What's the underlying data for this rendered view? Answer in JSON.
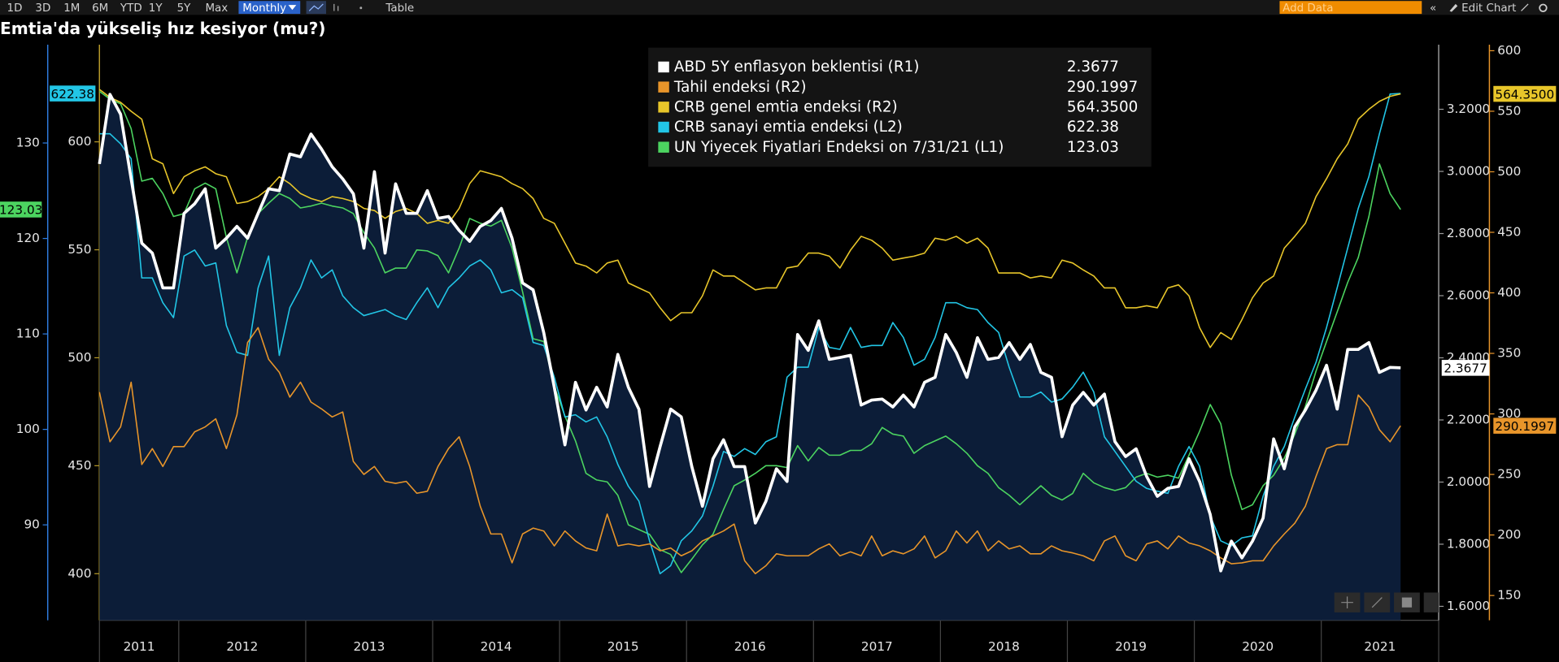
{
  "toolbar": {
    "ranges": [
      "1D",
      "3D",
      "1M",
      "6M",
      "YTD",
      "1Y",
      "5Y",
      "Max"
    ],
    "frequency": "Monthly",
    "table": "Table",
    "add_data": "Add Data",
    "edit_chart": "Edit Chart"
  },
  "chart_data": {
    "type": "line",
    "title": "Emtia'da yükseliş hız kesiyor (mu?)",
    "categories": [
      null,
      "2011",
      null,
      null,
      null,
      null,
      null,
      null,
      null,
      null,
      null,
      null,
      null,
      null,
      "2012",
      null,
      null,
      null,
      null,
      null,
      null,
      null,
      null,
      null,
      null,
      null,
      "2013",
      null,
      null,
      null,
      null,
      null,
      null,
      null,
      null,
      null,
      null,
      null,
      "2014",
      null,
      null,
      null,
      null,
      null,
      null,
      null,
      null,
      null,
      null,
      null,
      "2015",
      null,
      null,
      null,
      null,
      null,
      null,
      null,
      null,
      null,
      null,
      null,
      "2016",
      null,
      null,
      null,
      null,
      null,
      null,
      null,
      null,
      null,
      null,
      null,
      "2017",
      null,
      null,
      null,
      null,
      null,
      null,
      null,
      null,
      null,
      null,
      null,
      "2018",
      null,
      null,
      null,
      null,
      null,
      null,
      null,
      null,
      null,
      null,
      null,
      "2019",
      null,
      null,
      null,
      null,
      null,
      null,
      null,
      null,
      null,
      null,
      null,
      "2020",
      null,
      null,
      null,
      null,
      null,
      null,
      null,
      null,
      null,
      null,
      null,
      "2021",
      null
    ],
    "axes": {
      "L1": {
        "lim": [
          80,
          140.3
        ],
        "ticks": [
          90,
          100,
          110,
          120,
          130
        ],
        "color": "#2f7de1"
      },
      "L2": {
        "lim": [
          378.4,
          645
        ],
        "ticks": [
          400,
          450,
          500,
          550,
          600
        ],
        "color": "#b89b2a"
      },
      "R1": {
        "lim": [
          1.555,
          3.408
        ],
        "ticks": [
          {
            "value": 1.6,
            "label": "1.6000"
          },
          {
            "value": 1.8,
            "label": "1.8000"
          },
          {
            "value": 2.0,
            "label": "2.0000"
          },
          {
            "value": 2.2,
            "label": "2.2000"
          },
          {
            "value": 2.4,
            "label": "2.4000"
          },
          {
            "value": 2.6,
            "label": "2.6000"
          },
          {
            "value": 2.8,
            "label": "2.8000"
          },
          {
            "value": 3.0,
            "label": "3.0000"
          },
          {
            "value": 3.2,
            "label": "3.2000"
          }
        ],
        "color": "#9a9a9a"
      },
      "R2": {
        "lim": [
          129.5,
          605
        ],
        "ticks": [
          150,
          200,
          250,
          300,
          350,
          400,
          450,
          500,
          550,
          600
        ],
        "color": "#e8952a"
      }
    },
    "series": [
      {
        "name": "ABD 5Y enflasyon beklentisi (R1)",
        "color": "#ffffff",
        "fill": "#0c1d38",
        "axis": "R1",
        "last_label": "2.3677",
        "values": [
          3.024,
          3.248,
          3.184,
          2.976,
          2.769,
          2.737,
          2.625,
          2.625,
          2.865,
          2.896,
          2.944,
          2.753,
          2.785,
          2.823,
          2.785,
          2.865,
          2.944,
          2.938,
          3.056,
          3.047,
          3.12,
          3.072,
          3.015,
          2.976,
          2.928,
          2.753,
          2.999,
          2.737,
          2.96,
          2.865,
          2.865,
          2.938,
          2.849,
          2.855,
          2.81,
          2.775,
          2.823,
          2.842,
          2.881,
          2.785,
          2.641,
          2.619,
          2.481,
          2.305,
          2.12,
          2.321,
          2.232,
          2.305,
          2.242,
          2.411,
          2.305,
          2.235,
          1.986,
          2.114,
          2.235,
          2.21,
          2.05,
          1.922,
          2.075,
          2.136,
          2.05,
          2.05,
          1.868,
          1.938,
          2.043,
          2.002,
          2.475,
          2.424,
          2.519,
          2.395,
          2.401,
          2.408,
          2.248,
          2.264,
          2.267,
          2.242,
          2.28,
          2.242,
          2.321,
          2.337,
          2.475,
          2.417,
          2.337,
          2.465,
          2.395,
          2.401,
          2.449,
          2.395,
          2.443,
          2.353,
          2.337,
          2.146,
          2.248,
          2.289,
          2.248,
          2.283,
          2.13,
          2.082,
          2.107,
          2.018,
          1.954,
          1.98,
          1.986,
          2.075,
          2.002,
          1.896,
          1.714,
          1.81,
          1.756,
          1.81,
          1.884,
          2.139,
          2.043,
          2.178,
          2.232,
          2.296,
          2.376,
          2.235,
          2.427,
          2.427,
          2.449,
          2.353,
          2.369,
          2.3677
        ]
      },
      {
        "name": "Tahil endeksi (R2)",
        "color": "#e8952a",
        "axis": "R2",
        "last_label": "290.1997",
        "values": [
          318.0,
          277.0,
          289.3,
          326.2,
          258.2,
          271.3,
          256.6,
          273.0,
          273.0,
          285.2,
          289.3,
          295.9,
          271.3,
          299.2,
          359.0,
          371.3,
          345.1,
          334.4,
          313.9,
          326.2,
          309.8,
          304.1,
          297.5,
          301.6,
          260.7,
          250.0,
          256.6,
          244.3,
          242.6,
          244.3,
          234.4,
          236.1,
          256.6,
          271.3,
          281.1,
          256.6,
          223.8,
          200.8,
          200.8,
          177.0,
          200.8,
          205.7,
          203.3,
          191.0,
          203.3,
          195.1,
          189.3,
          186.9,
          217.2,
          191.0,
          192.6,
          191.0,
          192.6,
          186.9,
          189.3,
          182.8,
          186.9,
          195.1,
          199.2,
          203.3,
          209.0,
          178.7,
          168.0,
          174.6,
          184.4,
          182.8,
          182.8,
          182.8,
          188.5,
          192.6,
          182.8,
          186.1,
          182.8,
          199.2,
          182.8,
          186.9,
          184.4,
          188.5,
          199.2,
          181.1,
          186.9,
          203.3,
          193.4,
          203.3,
          186.9,
          195.1,
          188.5,
          191.0,
          184.4,
          184.4,
          191.0,
          186.9,
          185.2,
          182.8,
          178.7,
          195.1,
          199.2,
          182.8,
          178.7,
          192.6,
          195.1,
          188.5,
          199.2,
          193.4,
          191.0,
          186.9,
          181.1,
          176.2,
          177.0,
          178.7,
          178.7,
          191.0,
          200.8,
          209.8,
          223.8,
          248.4,
          271.3,
          274.6,
          274.6,
          315.6,
          305.7,
          286.9,
          277.0,
          290.1997
        ]
      },
      {
        "name": "CRB genel emtia endeksi (R2)",
        "color": "#e8c62a",
        "axis": "R2",
        "last_label": "564.3500",
        "values": [
          568.0,
          561.5,
          557.4,
          550.0,
          543.4,
          510.7,
          506.6,
          482.0,
          495.9,
          500.8,
          504.1,
          498.4,
          495.9,
          473.8,
          475.4,
          479.5,
          486.1,
          495.9,
          490.2,
          482.0,
          477.9,
          475.4,
          479.5,
          477.9,
          475.4,
          469.7,
          468.0,
          461.5,
          467.2,
          469.7,
          465.6,
          457.4,
          459.8,
          457.4,
          469.7,
          490.2,
          500.8,
          498.4,
          495.9,
          490.2,
          486.1,
          477.9,
          461.5,
          457.4,
          441.0,
          424.6,
          422.1,
          416.4,
          424.6,
          427.0,
          408.2,
          404.1,
          400.0,
          387.7,
          377.0,
          383.6,
          383.6,
          397.5,
          418.9,
          413.9,
          413.9,
          408.2,
          402.5,
          404.1,
          404.1,
          420.5,
          422.1,
          432.8,
          432.8,
          430.3,
          420.5,
          435.2,
          446.7,
          443.4,
          436.9,
          427.0,
          428.7,
          430.3,
          432.8,
          445.1,
          443.4,
          446.7,
          441.0,
          445.1,
          436.9,
          416.4,
          416.4,
          416.4,
          412.3,
          413.9,
          412.3,
          427.0,
          424.6,
          418.9,
          413.9,
          404.1,
          404.1,
          387.7,
          387.7,
          389.3,
          387.7,
          404.1,
          406.6,
          397.5,
          371.3,
          354.9,
          367.2,
          361.5,
          377.9,
          395.9,
          408.2,
          413.9,
          436.9,
          446.7,
          457.4,
          479.5,
          494.3,
          510.7,
          523.0,
          543.4,
          551.6,
          558.2,
          562.3,
          564.35
        ]
      },
      {
        "name": "CRB sanayi emtia endeksi (L2)",
        "color": "#22c6e6",
        "axis": "L2",
        "last_label": "622.38",
        "values": [
          603.7,
          603.7,
          599.1,
          592.2,
          537.0,
          537.0,
          525.5,
          518.6,
          547.1,
          549.9,
          542.5,
          543.9,
          514.9,
          502.5,
          501.1,
          532.4,
          547.1,
          501.1,
          523.2,
          532.4,
          545.3,
          537.0,
          540.7,
          528.7,
          523.2,
          519.5,
          520.9,
          522.3,
          519.5,
          517.7,
          525.5,
          532.4,
          523.2,
          532.4,
          537.0,
          542.5,
          545.3,
          540.7,
          530.1,
          531.5,
          527.8,
          507.1,
          505.7,
          491.0,
          472.6,
          473.6,
          470.3,
          472.6,
          463.4,
          450.6,
          440.5,
          433.6,
          415.2,
          400.0,
          403.7,
          415.2,
          419.8,
          426.7,
          440.5,
          456.6,
          454.3,
          457.9,
          455.2,
          461.1,
          463.4,
          491.0,
          495.6,
          495.6,
          514.0,
          504.8,
          503.9,
          514.0,
          504.8,
          505.7,
          505.7,
          516.3,
          509.4,
          496.6,
          499.3,
          509.4,
          525.5,
          525.5,
          523.2,
          522.3,
          516.3,
          511.7,
          495.6,
          481.8,
          481.8,
          484.1,
          479.5,
          480.9,
          486.4,
          493.3,
          484.1,
          463.4,
          456.6,
          449.7,
          442.8,
          439.5,
          438.2,
          437.2,
          449.7,
          458.9,
          449.7,
          426.7,
          415.2,
          412.9,
          416.6,
          417.5,
          435.9,
          449.7,
          458.9,
          472.6,
          485.5,
          497.9,
          514.0,
          532.4,
          550.8,
          569.2,
          583.9,
          603.7,
          622.1,
          622.38
        ]
      },
      {
        "name": "UN Yiyecek Fiyatlari Endeksi on 7/31/21 (L1)",
        "color": "#4cd460",
        "axis": "L1",
        "last_label": "123.03",
        "values": [
          135.4,
          134.6,
          134.1,
          131.5,
          126.0,
          126.3,
          124.7,
          122.3,
          122.6,
          125.2,
          125.8,
          125.2,
          120.1,
          116.4,
          120.1,
          122.6,
          123.7,
          124.7,
          124.2,
          123.2,
          123.4,
          123.7,
          123.4,
          123.2,
          122.6,
          120.6,
          119.0,
          116.4,
          116.9,
          116.9,
          118.8,
          118.7,
          118.2,
          116.4,
          119.0,
          122.1,
          121.6,
          121.3,
          121.9,
          119.0,
          114.4,
          109.5,
          109.2,
          104.5,
          101.4,
          98.8,
          95.4,
          94.7,
          94.5,
          93.1,
          90.0,
          89.5,
          89.0,
          87.4,
          86.9,
          85.0,
          86.4,
          87.9,
          89.0,
          91.6,
          94.1,
          94.7,
          95.4,
          96.2,
          96.2,
          96.0,
          98.3,
          96.7,
          98.1,
          97.3,
          97.3,
          97.8,
          97.8,
          98.5,
          100.2,
          99.5,
          99.3,
          97.5,
          98.3,
          98.8,
          99.3,
          98.5,
          97.5,
          96.2,
          95.4,
          93.9,
          93.1,
          92.1,
          93.1,
          94.1,
          93.1,
          92.6,
          93.3,
          95.4,
          94.4,
          93.9,
          93.6,
          93.9,
          95.0,
          95.4,
          95.0,
          95.2,
          94.9,
          97.3,
          99.8,
          102.6,
          100.6,
          95.2,
          91.6,
          92.1,
          94.1,
          95.2,
          97.0,
          99.5,
          102.4,
          106.1,
          109.2,
          112.3,
          115.4,
          118.0,
          122.3,
          127.8,
          124.7,
          123.03
        ]
      }
    ]
  }
}
